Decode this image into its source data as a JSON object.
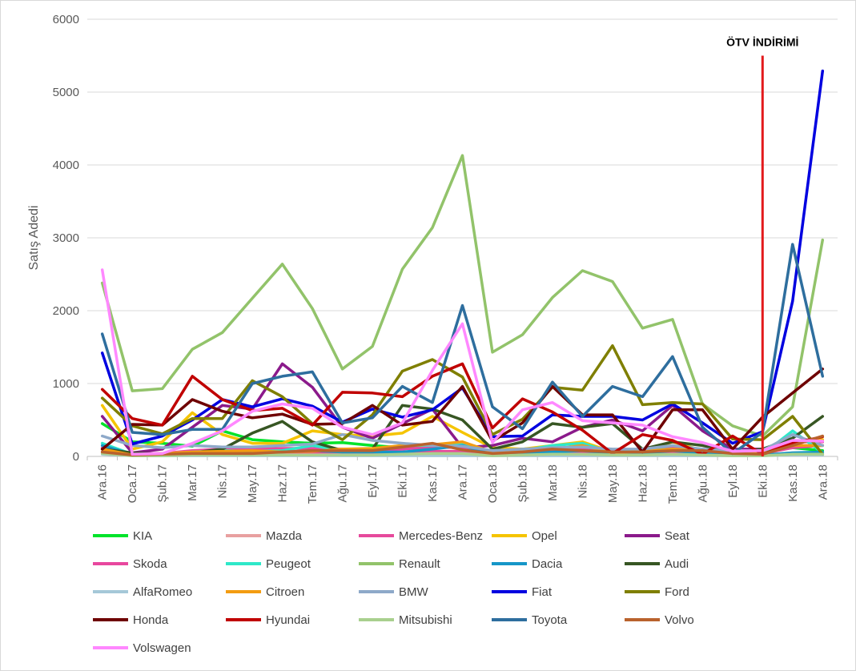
{
  "chart_data": {
    "type": "line",
    "title": "",
    "xlabel": "",
    "ylabel": "Satış Adedi",
    "ylim": [
      0,
      6000
    ],
    "yticks": [
      "0",
      "1000",
      "2000",
      "3000",
      "4000",
      "5000",
      "6000"
    ],
    "grid": true,
    "legend_position": "bottom",
    "categories": [
      "Ara.16",
      "Oca.17",
      "Şub.17",
      "Mar.17",
      "Nis.17",
      "May.17",
      "Haz.17",
      "Tem.17",
      "Ağu.17",
      "Eyl.17",
      "Eki.17",
      "Kas.17",
      "Ara.17",
      "Oca.18",
      "Şub.18",
      "Mar.18",
      "Nis.18",
      "May.18",
      "Haz.18",
      "Tem.18",
      "Ağu.18",
      "Eyl.18",
      "Eki.18",
      "Kas.18",
      "Ara.18"
    ],
    "annotation": {
      "label": "ÖTV İNDİRİMİ",
      "category": "Eki.18",
      "y_top": 5500,
      "color": "#e31a1c"
    },
    "series": [
      {
        "name": "KIA",
        "color": "#00e32a",
        "values": [
          450,
          200,
          180,
          140,
          350,
          230,
          200,
          180,
          190,
          150,
          120,
          150,
          150,
          60,
          100,
          120,
          100,
          60,
          80,
          90,
          80,
          40,
          60,
          120,
          80
        ]
      },
      {
        "name": "Mazda",
        "color": "#e8a0a0",
        "values": [
          40,
          20,
          20,
          30,
          40,
          40,
          40,
          40,
          40,
          40,
          40,
          50,
          40,
          20,
          20,
          30,
          30,
          30,
          30,
          30,
          30,
          20,
          20,
          50,
          50
        ]
      },
      {
        "name": "Mercedes-Benz",
        "color": "#e64a9c",
        "values": [
          60,
          40,
          40,
          50,
          60,
          60,
          60,
          60,
          60,
          60,
          60,
          70,
          70,
          40,
          40,
          50,
          60,
          60,
          60,
          60,
          60,
          50,
          40,
          120,
          150
        ]
      },
      {
        "name": "Opel",
        "color": "#f5c400",
        "values": [
          700,
          100,
          200,
          600,
          300,
          180,
          180,
          350,
          300,
          280,
          320,
          550,
          330,
          120,
          100,
          150,
          200,
          60,
          60,
          200,
          80,
          60,
          60,
          200,
          230
        ]
      },
      {
        "name": "Seat",
        "color": "#8b1a8b",
        "values": [
          550,
          50,
          100,
          400,
          700,
          650,
          1270,
          950,
          400,
          250,
          450,
          650,
          120,
          150,
          250,
          200,
          400,
          500,
          350,
          700,
          350,
          100,
          100,
          200,
          200
        ]
      },
      {
        "name": "Skoda",
        "color": "#e8479e",
        "values": [
          120,
          20,
          40,
          80,
          100,
          100,
          110,
          110,
          100,
          80,
          100,
          130,
          120,
          40,
          60,
          80,
          100,
          80,
          80,
          120,
          100,
          60,
          80,
          200,
          200
        ]
      },
      {
        "name": "Peugeot",
        "color": "#2ee8c9",
        "values": [
          180,
          30,
          30,
          60,
          80,
          70,
          80,
          150,
          80,
          100,
          150,
          150,
          180,
          50,
          80,
          150,
          180,
          50,
          80,
          100,
          80,
          40,
          30,
          350,
          50
        ]
      },
      {
        "name": "Renault",
        "color": "#92c36a",
        "values": [
          2380,
          900,
          930,
          1470,
          1700,
          2170,
          2640,
          2030,
          1200,
          1510,
          2570,
          3140,
          4130,
          1430,
          1670,
          2180,
          2550,
          2400,
          1760,
          1880,
          720,
          420,
          280,
          680,
          2970
        ]
      },
      {
        "name": "Dacia",
        "color": "#1696c8",
        "values": [
          150,
          30,
          20,
          40,
          60,
          40,
          60,
          80,
          60,
          60,
          60,
          100,
          150,
          30,
          40,
          60,
          80,
          40,
          40,
          80,
          40,
          30,
          20,
          50,
          60
        ]
      },
      {
        "name": "Audi",
        "color": "#375623",
        "values": [
          100,
          50,
          30,
          50,
          100,
          320,
          480,
          200,
          80,
          100,
          700,
          650,
          500,
          100,
          200,
          450,
          400,
          450,
          100,
          200,
          150,
          60,
          100,
          250,
          550
        ]
      },
      {
        "name": "AlfaRomeo",
        "color": "#a5c8d8",
        "values": [
          30,
          10,
          10,
          10,
          10,
          10,
          10,
          10,
          10,
          10,
          10,
          10,
          10,
          10,
          10,
          10,
          10,
          10,
          10,
          10,
          10,
          10,
          10,
          20,
          20
        ]
      },
      {
        "name": "Citroen",
        "color": "#f39c12",
        "values": [
          100,
          20,
          40,
          60,
          70,
          80,
          60,
          70,
          100,
          110,
          150,
          160,
          200,
          60,
          80,
          100,
          150,
          50,
          70,
          100,
          80,
          50,
          40,
          150,
          150
        ]
      },
      {
        "name": "BMW",
        "color": "#8ea9c9",
        "values": [
          280,
          150,
          120,
          150,
          130,
          130,
          150,
          170,
          300,
          220,
          180,
          150,
          140,
          80,
          100,
          120,
          130,
          100,
          100,
          150,
          100,
          80,
          80,
          300,
          150
        ]
      },
      {
        "name": "Fiat",
        "color": "#0000e0",
        "values": [
          1420,
          170,
          280,
          500,
          780,
          680,
          790,
          690,
          470,
          650,
          540,
          640,
          940,
          270,
          280,
          570,
          550,
          550,
          500,
          720,
          460,
          180,
          340,
          2130,
          5290
        ]
      },
      {
        "name": "Ford",
        "color": "#7f7f00",
        "values": [
          800,
          420,
          310,
          520,
          520,
          1040,
          820,
          450,
          230,
          570,
          1170,
          1330,
          1090,
          300,
          510,
          950,
          910,
          1520,
          710,
          740,
          720,
          240,
          230,
          550,
          30
        ]
      },
      {
        "name": "Honda",
        "color": "#6e0000",
        "values": [
          100,
          440,
          430,
          780,
          620,
          530,
          580,
          440,
          450,
          700,
          430,
          480,
          960,
          210,
          460,
          960,
          570,
          570,
          60,
          640,
          640,
          100,
          540,
          870,
          1200
        ]
      },
      {
        "name": "Hyundai",
        "color": "#c00000",
        "values": [
          920,
          520,
          430,
          1100,
          780,
          630,
          660,
          430,
          880,
          870,
          820,
          1100,
          1270,
          390,
          790,
          610,
          360,
          40,
          300,
          220,
          30,
          280,
          30,
          180,
          270
        ]
      },
      {
        "name": "Mitsubishi",
        "color": "#a9d08e",
        "values": [
          40,
          10,
          10,
          20,
          20,
          20,
          20,
          20,
          20,
          20,
          30,
          40,
          40,
          10,
          20,
          30,
          30,
          20,
          20,
          30,
          20,
          10,
          10,
          30,
          30
        ]
      },
      {
        "name": "Toyota",
        "color": "#2e6e9e",
        "values": [
          1680,
          330,
          300,
          370,
          370,
          1000,
          1100,
          1160,
          460,
          530,
          960,
          740,
          2070,
          680,
          380,
          1020,
          550,
          960,
          820,
          1370,
          400,
          40,
          330,
          2910,
          1100
        ]
      },
      {
        "name": "Volvo",
        "color": "#b9622d",
        "values": [
          60,
          20,
          30,
          40,
          40,
          40,
          60,
          80,
          80,
          80,
          130,
          180,
          90,
          40,
          60,
          100,
          80,
          60,
          60,
          80,
          80,
          40,
          30,
          150,
          280
        ]
      },
      {
        "name": "Volswagen",
        "color": "#ff88ff",
        "values": [
          2560,
          30,
          40,
          180,
          350,
          620,
          720,
          660,
          400,
          300,
          460,
          1180,
          1820,
          190,
          640,
          740,
          490,
          460,
          430,
          270,
          190,
          70,
          80,
          220,
          210
        ]
      }
    ]
  }
}
